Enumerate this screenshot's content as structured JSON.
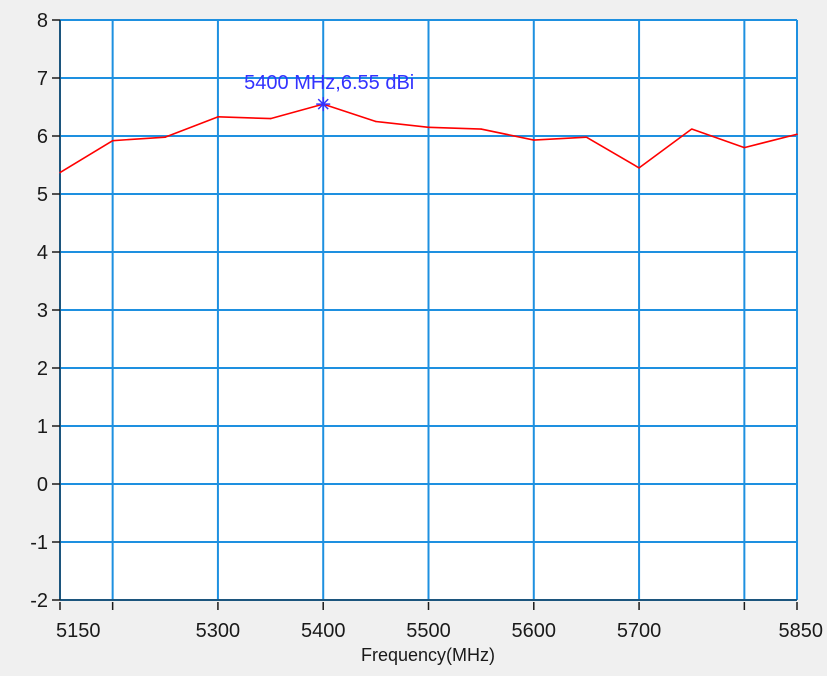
{
  "chart_data": {
    "type": "line",
    "xlabel": "Frequency(MHz)",
    "ylabel": "",
    "xlim": [
      5150,
      5850
    ],
    "ylim": [
      -2,
      8
    ],
    "x_ticks": [
      5150,
      5200,
      5300,
      5400,
      5500,
      5600,
      5700,
      5800,
      5850
    ],
    "x_tick_labels": [
      "5150",
      "",
      "5300",
      "5400",
      "5500",
      "5600",
      "5700",
      "",
      "5850"
    ],
    "y_ticks": [
      -2,
      -1,
      0,
      1,
      2,
      3,
      4,
      5,
      6,
      7,
      8
    ],
    "grid": true,
    "series": [
      {
        "color": "#ff0000",
        "x": [
          5150,
          5200,
          5250,
          5300,
          5350,
          5400,
          5450,
          5500,
          5550,
          5600,
          5650,
          5700,
          5750,
          5800,
          5850
        ],
        "y": [
          5.37,
          5.92,
          5.98,
          6.33,
          6.3,
          6.55,
          6.25,
          6.15,
          6.12,
          5.93,
          5.98,
          5.45,
          6.12,
          5.8,
          6.03
        ]
      }
    ],
    "annotations": [
      {
        "x": 5400,
        "y": 6.55,
        "text": "5400 MHz,6.55 dBi",
        "color": "#3333ff"
      }
    ]
  },
  "colors": {
    "background": "#f0f0f0",
    "plot_background": "#ffffff",
    "grid": "#1e90e0",
    "line": "#ff0000",
    "marker": "#3333ff",
    "axis_text": "#1a1a1a"
  }
}
